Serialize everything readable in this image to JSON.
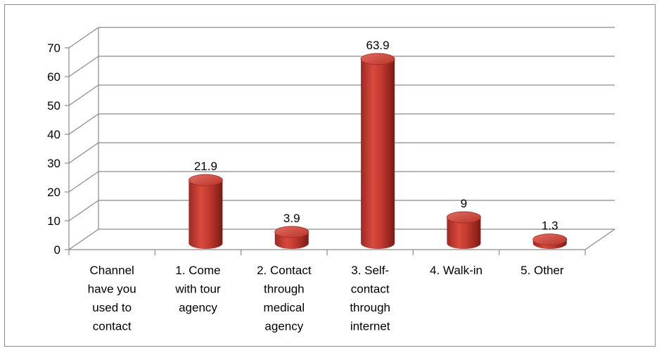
{
  "chart_data": {
    "type": "bar",
    "title": "",
    "xlabel": "",
    "ylabel": "",
    "categories": [
      [
        "Channel",
        "have you",
        "used to",
        "contact"
      ],
      [
        "1. Come",
        "with tour",
        "agency"
      ],
      [
        "2. Contact",
        "through",
        "medical",
        "agency"
      ],
      [
        "3. Self-",
        "contact",
        "through",
        "internet"
      ],
      [
        "4. Walk-in"
      ],
      [
        "5. Other"
      ]
    ],
    "values": [
      null,
      21.9,
      3.9,
      63.9,
      9,
      1.3
    ],
    "data_labels": [
      "",
      "21.9",
      "3.9",
      "63.9",
      "9",
      "1.3"
    ],
    "ylim": [
      0,
      70
    ],
    "yticks": [
      0,
      10,
      20,
      30,
      40,
      50,
      60,
      70
    ],
    "grid": true,
    "legend": "none",
    "bar_color": "#c0392b",
    "bar_dark": "#8e1e17",
    "bar_light": "#e86a5e"
  }
}
